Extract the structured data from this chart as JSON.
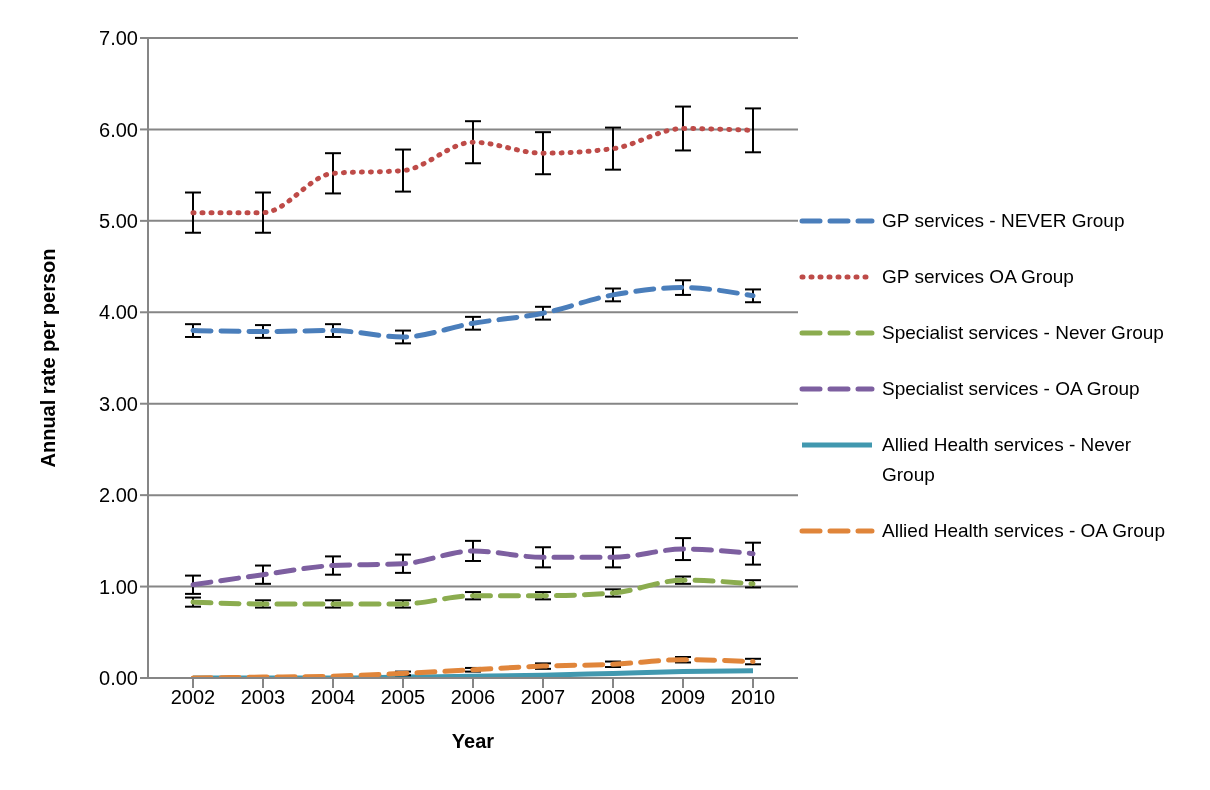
{
  "chart_data": {
    "type": "line",
    "xlabel": "Year",
    "ylabel": "Annual rate per person",
    "categories": [
      "2002",
      "2003",
      "2004",
      "2005",
      "2006",
      "2007",
      "2008",
      "2009",
      "2010"
    ],
    "ylim": [
      0,
      7
    ],
    "yticks": [
      {
        "value": 0,
        "label": "0.00"
      },
      {
        "value": 1,
        "label": "1.00"
      },
      {
        "value": 2,
        "label": "2.00"
      },
      {
        "value": 3,
        "label": "3.00"
      },
      {
        "value": 4,
        "label": "4.00"
      },
      {
        "value": 5,
        "label": "5.00"
      },
      {
        "value": 6,
        "label": "6.00"
      },
      {
        "value": 7,
        "label": "7.00"
      }
    ],
    "grid": "y",
    "legend": "right",
    "marker": "none",
    "series": [
      {
        "name": "GP services - NEVER Group",
        "color": "#4a7ebb",
        "line_style": "dashed",
        "values": [
          3.8,
          3.79,
          3.8,
          3.73,
          3.88,
          3.99,
          4.19,
          4.27,
          4.18
        ],
        "errors": [
          0.07,
          0.07,
          0.07,
          0.07,
          0.07,
          0.07,
          0.07,
          0.08,
          0.07
        ]
      },
      {
        "name": "GP services OA Group",
        "color": "#be4b48",
        "line_style": "dotted",
        "values": [
          5.09,
          5.09,
          5.52,
          5.55,
          5.86,
          5.74,
          5.79,
          6.01,
          5.99
        ],
        "errors": [
          0.22,
          0.22,
          0.22,
          0.23,
          0.23,
          0.23,
          0.23,
          0.24,
          0.24
        ]
      },
      {
        "name": "Specialist services - Never Group",
        "color": "#8bac4f",
        "line_style": "dashed",
        "values": [
          0.83,
          0.81,
          0.81,
          0.81,
          0.9,
          0.9,
          0.93,
          1.07,
          1.03
        ],
        "errors": [
          0.05,
          0.04,
          0.04,
          0.04,
          0.04,
          0.04,
          0.04,
          0.04,
          0.04
        ]
      },
      {
        "name": "Specialist services - OA Group",
        "color": "#7d5fa0",
        "line_style": "dashed",
        "values": [
          1.02,
          1.13,
          1.23,
          1.25,
          1.39,
          1.32,
          1.32,
          1.41,
          1.36
        ],
        "errors": [
          0.1,
          0.1,
          0.1,
          0.1,
          0.11,
          0.11,
          0.11,
          0.12,
          0.12
        ]
      },
      {
        "name": "Allied Health services - Never Group",
        "color": "#4198af",
        "line_style": "solid",
        "values": [
          0,
          0,
          0,
          0.01,
          0.02,
          0.03,
          0.05,
          0.07,
          0.08
        ]
      },
      {
        "name": "Allied Health services - OA Group",
        "color": "#e0853a",
        "line_style": "dashed",
        "values": [
          0,
          0.01,
          0.02,
          0.05,
          0.09,
          0.13,
          0.15,
          0.2,
          0.18
        ],
        "errors": [
          null,
          null,
          null,
          0.02,
          0.02,
          0.03,
          0.03,
          0.03,
          0.03
        ]
      }
    ]
  }
}
